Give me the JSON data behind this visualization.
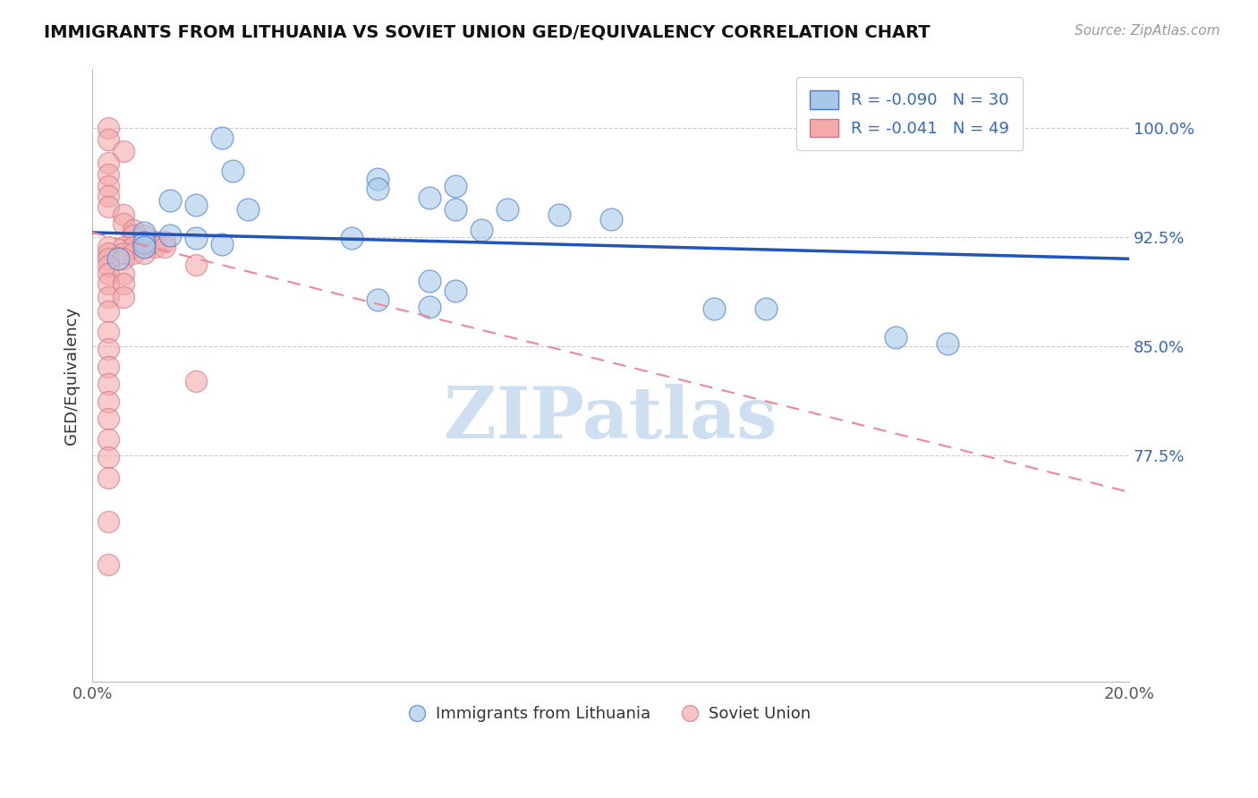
{
  "title": "IMMIGRANTS FROM LITHUANIA VS SOVIET UNION GED/EQUIVALENCY CORRELATION CHART",
  "source": "Source: ZipAtlas.com",
  "ylabel": "GED/Equivalency",
  "y_ticks": [
    0.775,
    0.85,
    0.925,
    1.0
  ],
  "y_tick_labels": [
    "77.5%",
    "85.0%",
    "92.5%",
    "100.0%"
  ],
  "xlim": [
    0.0,
    0.2
  ],
  "ylim": [
    0.62,
    1.04
  ],
  "legend_blue_r": "R = -0.090",
  "legend_blue_n": "N = 30",
  "legend_pink_r": "R = -0.041",
  "legend_pink_n": "N = 49",
  "label_blue": "Immigrants from Lithuania",
  "label_pink": "Soviet Union",
  "blue_color": "#A8C8E8",
  "pink_color": "#F4AAAA",
  "blue_edge_color": "#4477CC",
  "pink_edge_color": "#CC7788",
  "blue_line_color": "#2255BB",
  "pink_line_color": "#EE8899",
  "blue_scatter": [
    [
      0.025,
      0.993
    ],
    [
      0.027,
      0.97
    ],
    [
      0.055,
      0.965
    ],
    [
      0.07,
      0.96
    ],
    [
      0.065,
      0.952
    ],
    [
      0.07,
      0.944
    ],
    [
      0.055,
      0.958
    ],
    [
      0.015,
      0.95
    ],
    [
      0.02,
      0.947
    ],
    [
      0.03,
      0.944
    ],
    [
      0.08,
      0.944
    ],
    [
      0.09,
      0.94
    ],
    [
      0.1,
      0.937
    ],
    [
      0.075,
      0.93
    ],
    [
      0.01,
      0.928
    ],
    [
      0.015,
      0.926
    ],
    [
      0.02,
      0.924
    ],
    [
      0.025,
      0.92
    ],
    [
      0.05,
      0.924
    ],
    [
      0.01,
      0.921
    ],
    [
      0.01,
      0.918
    ],
    [
      0.005,
      0.91
    ],
    [
      0.065,
      0.895
    ],
    [
      0.07,
      0.888
    ],
    [
      0.055,
      0.882
    ],
    [
      0.065,
      0.877
    ],
    [
      0.12,
      0.876
    ],
    [
      0.13,
      0.876
    ],
    [
      0.155,
      0.856
    ],
    [
      0.165,
      0.852
    ]
  ],
  "pink_scatter": [
    [
      0.003,
      1.0
    ],
    [
      0.003,
      0.992
    ],
    [
      0.006,
      0.984
    ],
    [
      0.003,
      0.976
    ],
    [
      0.003,
      0.968
    ],
    [
      0.003,
      0.96
    ],
    [
      0.003,
      0.953
    ],
    [
      0.003,
      0.946
    ],
    [
      0.006,
      0.94
    ],
    [
      0.006,
      0.934
    ],
    [
      0.008,
      0.93
    ],
    [
      0.008,
      0.926
    ],
    [
      0.01,
      0.926
    ],
    [
      0.01,
      0.922
    ],
    [
      0.012,
      0.922
    ],
    [
      0.014,
      0.922
    ],
    [
      0.003,
      0.918
    ],
    [
      0.006,
      0.918
    ],
    [
      0.008,
      0.918
    ],
    [
      0.01,
      0.918
    ],
    [
      0.012,
      0.918
    ],
    [
      0.014,
      0.918
    ],
    [
      0.003,
      0.914
    ],
    [
      0.006,
      0.914
    ],
    [
      0.008,
      0.914
    ],
    [
      0.01,
      0.914
    ],
    [
      0.003,
      0.91
    ],
    [
      0.006,
      0.91
    ],
    [
      0.003,
      0.905
    ],
    [
      0.02,
      0.906
    ],
    [
      0.003,
      0.9
    ],
    [
      0.006,
      0.9
    ],
    [
      0.003,
      0.893
    ],
    [
      0.006,
      0.893
    ],
    [
      0.003,
      0.884
    ],
    [
      0.006,
      0.884
    ],
    [
      0.003,
      0.874
    ],
    [
      0.003,
      0.86
    ],
    [
      0.003,
      0.848
    ],
    [
      0.003,
      0.836
    ],
    [
      0.003,
      0.824
    ],
    [
      0.02,
      0.826
    ],
    [
      0.003,
      0.812
    ],
    [
      0.003,
      0.8
    ],
    [
      0.003,
      0.786
    ],
    [
      0.003,
      0.774
    ],
    [
      0.003,
      0.76
    ],
    [
      0.003,
      0.73
    ],
    [
      0.003,
      0.7
    ]
  ],
  "blue_trend_x": [
    0.0,
    0.2
  ],
  "blue_trend_y": [
    0.928,
    0.91
  ],
  "pink_trend_x": [
    0.0,
    0.2
  ],
  "pink_trend_y": [
    0.928,
    0.75
  ],
  "watermark": "ZIPatlas",
  "bg_color": "#FFFFFF"
}
